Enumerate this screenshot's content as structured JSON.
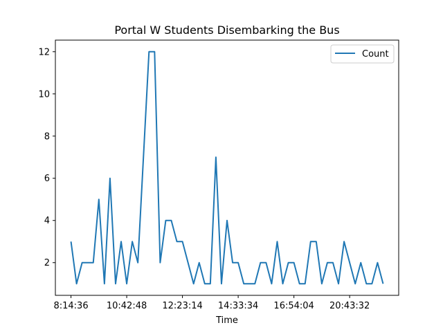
{
  "chart_data": {
    "type": "line",
    "title": "Portal W Students Disembarking the Bus",
    "xlabel": "Time",
    "ylabel": "",
    "x_tick_labels": [
      "8:14:36",
      "10:42:48",
      "12:23:14",
      "14:33:34",
      "16:54:04",
      "20:43:32"
    ],
    "x_tick_index": [
      0,
      10,
      20,
      30,
      40,
      50
    ],
    "y_ticks": [
      2,
      4,
      6,
      8,
      10,
      12
    ],
    "ylim": [
      0.45,
      12.55
    ],
    "xlim": [
      -2.8,
      58.8
    ],
    "grid": false,
    "legend_position": "top-right",
    "series": [
      {
        "name": "Count",
        "color": "#1f77b4",
        "values": [
          3,
          1,
          2,
          2,
          2,
          5,
          1,
          6,
          1,
          3,
          1,
          3,
          2,
          7,
          12,
          12,
          2,
          4,
          4,
          3,
          3,
          2,
          1,
          2,
          1,
          1,
          7,
          1,
          4,
          2,
          2,
          1,
          1,
          1,
          2,
          2,
          1,
          3,
          1,
          2,
          2,
          1,
          1,
          3,
          3,
          1,
          2,
          2,
          1,
          3,
          2,
          1,
          2,
          1,
          1,
          2,
          1
        ]
      }
    ]
  }
}
